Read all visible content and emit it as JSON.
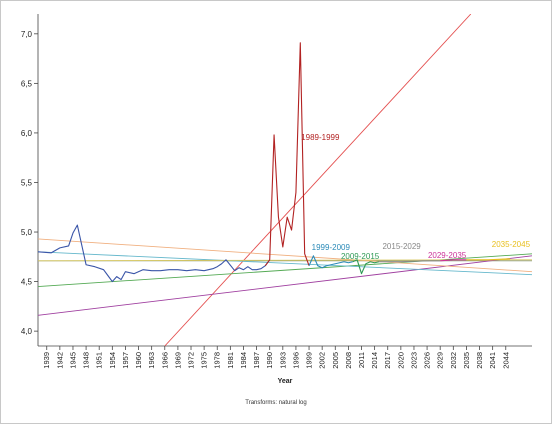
{
  "chart_data": {
    "type": "line",
    "title": "",
    "xlabel": "Year",
    "ylabel": "",
    "footnote": "Transforms: natural log",
    "xlim": [
      1937,
      2050
    ],
    "ylim": [
      3.85,
      7.2
    ],
    "y_ticks": [
      "4,0",
      "4,5",
      "5,0",
      "5,5",
      "6,0",
      "6,5",
      "7,0"
    ],
    "x_ticks": [
      1939,
      1942,
      1945,
      1948,
      1951,
      1954,
      1957,
      1960,
      1963,
      1966,
      1969,
      1972,
      1975,
      1978,
      1981,
      1984,
      1987,
      1990,
      1993,
      1996,
      1999,
      2002,
      2005,
      2008,
      2011,
      2014,
      2017,
      2020,
      2023,
      2026,
      2029,
      2032,
      2035,
      2038,
      2041,
      2044
    ],
    "reference_line": {
      "y": 4.71,
      "color": "#8a9a7a"
    },
    "series": [
      {
        "name": "",
        "color": "#3a55a8",
        "x": [
          1937,
          1940,
          1942,
          1944,
          1945,
          1946,
          1948,
          1950,
          1952,
          1953,
          1954,
          1955,
          1956,
          1957,
          1959,
          1961,
          1963,
          1965,
          1967,
          1969,
          1971,
          1973,
          1975,
          1977,
          1978,
          1979,
          1980,
          1982,
          1983,
          1984,
          1985,
          1986,
          1987,
          1988,
          1989,
          1990
        ],
        "values": [
          4.8,
          4.79,
          4.84,
          4.86,
          4.99,
          5.07,
          4.67,
          4.65,
          4.62,
          4.56,
          4.5,
          4.55,
          4.52,
          4.6,
          4.58,
          4.62,
          4.61,
          4.61,
          4.62,
          4.62,
          4.61,
          4.62,
          4.61,
          4.63,
          4.65,
          4.68,
          4.72,
          4.61,
          4.64,
          4.62,
          4.65,
          4.62,
          4.62,
          4.63,
          4.66,
          4.72
        ]
      },
      {
        "name": "1989-1999",
        "color": "#b22222",
        "x": [
          1989,
          1990,
          1991,
          1992,
          1993,
          1994,
          1995,
          1996,
          1997,
          1998,
          1999
        ],
        "values": [
          4.66,
          4.72,
          5.98,
          5.15,
          4.85,
          5.15,
          5.02,
          5.4,
          6.91,
          4.78,
          4.66
        ]
      },
      {
        "name": "1999-2009",
        "color": "#2a8ab8",
        "x": [
          1999,
          2000,
          2001,
          2002,
          2003,
          2004,
          2005,
          2006,
          2007,
          2008,
          2009
        ],
        "values": [
          4.66,
          4.76,
          4.66,
          4.64,
          4.66,
          4.67,
          4.68,
          4.69,
          4.7,
          4.69,
          4.7
        ]
      },
      {
        "name": "2009-2015",
        "color": "#2e9a55",
        "x": [
          2009,
          2010,
          2011,
          2012,
          2013,
          2014,
          2015
        ],
        "values": [
          4.7,
          4.72,
          4.58,
          4.68,
          4.7,
          4.69,
          4.7
        ]
      },
      {
        "name": "2015-2029",
        "color": "#888888",
        "x": [
          2015,
          2020,
          2025,
          2029
        ],
        "values": [
          4.7,
          4.7,
          4.71,
          4.71
        ]
      },
      {
        "name": "2029-2035",
        "color": "#cc3399",
        "x": [
          2029,
          2032,
          2035
        ],
        "values": [
          4.71,
          4.72,
          4.72
        ]
      },
      {
        "name": "2035-2045",
        "color": "#e8c020",
        "x": [
          2035,
          2040,
          2045
        ],
        "values": [
          4.72,
          4.72,
          4.73
        ]
      }
    ],
    "trend_lines": [
      {
        "color": "#e45050",
        "x": [
          1966,
          2036
        ],
        "values": [
          3.85,
          7.2
        ]
      },
      {
        "color": "#a040a0",
        "x": [
          1937,
          2050
        ],
        "values": [
          4.16,
          4.76
        ]
      },
      {
        "color": "#55aa55",
        "x": [
          1937,
          2050
        ],
        "values": [
          4.45,
          4.78
        ]
      },
      {
        "color": "#f0b080",
        "x": [
          1937,
          2050
        ],
        "values": [
          4.93,
          4.6
        ]
      },
      {
        "color": "#66b8cc",
        "x": [
          1937,
          2050
        ],
        "values": [
          4.8,
          4.57
        ]
      },
      {
        "color": "#d8c860",
        "x": [
          1937,
          2050
        ],
        "values": [
          4.71,
          4.72
        ]
      }
    ],
    "annotations": [
      {
        "text": "1989-1999",
        "x": 1997.2,
        "y": 5.93,
        "color": "#b22222"
      },
      {
        "text": "1999-2009",
        "x": 1999.6,
        "y": 4.82,
        "color": "#2a8ab8"
      },
      {
        "text": "2015-2029",
        "x": 2015.8,
        "y": 4.83,
        "color": "#888888"
      },
      {
        "text": "2009-2015",
        "x": 2006.3,
        "y": 4.73,
        "color": "#2e9a55"
      },
      {
        "text": "2029-2035",
        "x": 2026.2,
        "y": 4.74,
        "color": "#cc3399"
      },
      {
        "text": "2035-2045",
        "x": 2040.8,
        "y": 4.85,
        "color": "#e8c020"
      }
    ]
  }
}
